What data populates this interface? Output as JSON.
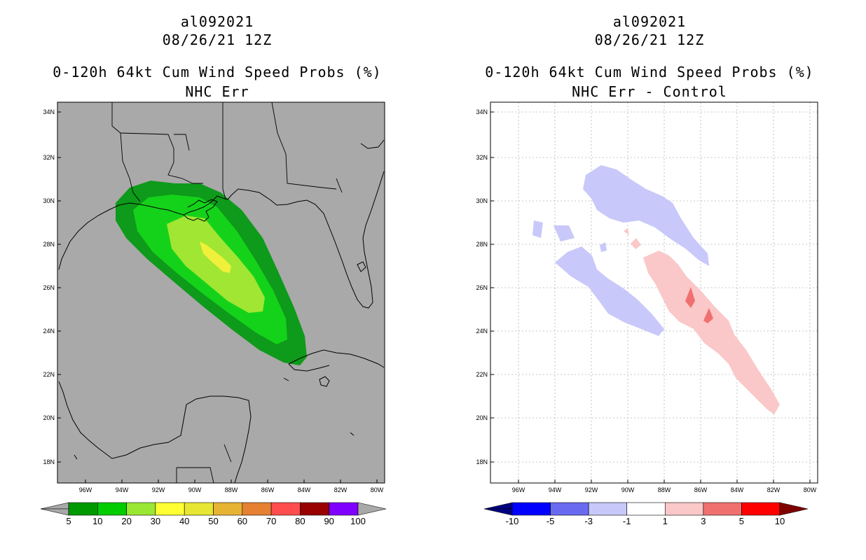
{
  "colors": {
    "panel_bg": "#a9a9a9",
    "p5": "#0e9a1a",
    "p10": "#14d21a",
    "p20": "#a0e632",
    "p30": "#f0f03a",
    "d_neg3": "#c8c8fa",
    "d_pos1": "#fac8c8",
    "d_pos3": "#f07070"
  },
  "left": {
    "storm_id": "al092021",
    "datetime": "08/26/21 12Z",
    "product": "0-120h 64kt Cum Wind Speed Probs (%)",
    "subtitle": "NHC Err",
    "colorbar": {
      "colors": [
        "#009900",
        "#00cc00",
        "#99e633",
        "#ffff33",
        "#e6e633",
        "#e6b333",
        "#e68033",
        "#ff4d4d",
        "#990000",
        "#8000ff"
      ],
      "labels": [
        "5",
        "10",
        "20",
        "30",
        "40",
        "50",
        "60",
        "70",
        "80",
        "90",
        "100"
      ]
    }
  },
  "right": {
    "storm_id": "al092021",
    "datetime": "08/26/21 12Z",
    "product": "0-120h 64kt Cum Wind Speed Probs (%)",
    "subtitle": "NHC Err - Control",
    "colorbar": {
      "colors": [
        "#0000ff",
        "#6a6af0",
        "#c8c8fa",
        "#ffffff",
        "#fac8c8",
        "#f07070",
        "#ff0000"
      ],
      "labels": [
        "-10",
        "-5",
        "-3",
        "-1",
        "1",
        "3",
        "5",
        "10"
      ]
    }
  },
  "axes": {
    "lon_labels": [
      "96W",
      "94W",
      "92W",
      "90W",
      "88W",
      "86W",
      "84W",
      "82W",
      "80W"
    ],
    "lat_labels": [
      "34N",
      "32N",
      "30N",
      "28N",
      "26N",
      "24N",
      "22N",
      "20N",
      "18N"
    ]
  }
}
